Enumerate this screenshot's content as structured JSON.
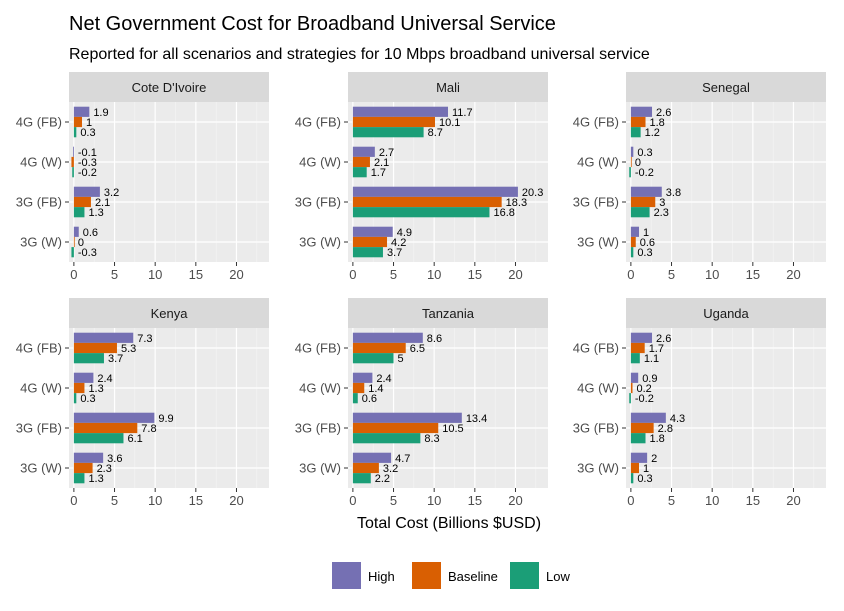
{
  "chart_data": {
    "type": "bar",
    "orientation": "horizontal",
    "facet": "country",
    "title": "Net Government Cost for Broadband Universal Service",
    "subtitle": "Reported for all scenarios and strategies for 10 Mbps broadband universal service",
    "xlabel": "Total Cost (Billions $USD)",
    "ylabel": "",
    "xlim": [
      -0.6,
      24
    ],
    "x_ticks": [
      0,
      5,
      10,
      15,
      20
    ],
    "grid": true,
    "legend_position": "bottom",
    "categories": [
      "4G (FB)",
      "4G (W)",
      "3G (FB)",
      "3G (W)"
    ],
    "series_names": [
      "High",
      "Baseline",
      "Low"
    ],
    "colors": {
      "High": "#7570b3",
      "Baseline": "#d95f02",
      "Low": "#1b9e77"
    },
    "panels": [
      {
        "country": "Cote D'Ivoire",
        "series": [
          {
            "name": "High",
            "values": [
              1.9,
              -0.1,
              3.2,
              0.6
            ]
          },
          {
            "name": "Baseline",
            "values": [
              1,
              -0.3,
              2.1,
              0
            ]
          },
          {
            "name": "Low",
            "values": [
              0.3,
              -0.2,
              1.3,
              -0.3
            ]
          }
        ]
      },
      {
        "country": "Mali",
        "series": [
          {
            "name": "High",
            "values": [
              11.7,
              2.7,
              20.3,
              4.9
            ]
          },
          {
            "name": "Baseline",
            "values": [
              10.1,
              2.1,
              18.3,
              4.2
            ]
          },
          {
            "name": "Low",
            "values": [
              8.7,
              1.7,
              16.8,
              3.7
            ]
          }
        ]
      },
      {
        "country": "Senegal",
        "series": [
          {
            "name": "High",
            "values": [
              2.6,
              0.3,
              3.8,
              1
            ]
          },
          {
            "name": "Baseline",
            "values": [
              1.8,
              0,
              3,
              0.6
            ]
          },
          {
            "name": "Low",
            "values": [
              1.2,
              -0.2,
              2.3,
              0.3
            ]
          }
        ]
      },
      {
        "country": "Kenya",
        "series": [
          {
            "name": "High",
            "values": [
              7.3,
              2.4,
              9.9,
              3.6
            ]
          },
          {
            "name": "Baseline",
            "values": [
              5.3,
              1.3,
              7.8,
              2.3
            ]
          },
          {
            "name": "Low",
            "values": [
              3.7,
              0.3,
              6.1,
              1.3
            ]
          }
        ]
      },
      {
        "country": "Tanzania",
        "series": [
          {
            "name": "High",
            "values": [
              8.6,
              2.4,
              13.4,
              4.7
            ]
          },
          {
            "name": "Baseline",
            "values": [
              6.5,
              1.4,
              10.5,
              3.2
            ]
          },
          {
            "name": "Low",
            "values": [
              5,
              0.6,
              8.3,
              2.2
            ]
          }
        ]
      },
      {
        "country": "Uganda",
        "series": [
          {
            "name": "High",
            "values": [
              2.6,
              0.9,
              4.3,
              2
            ]
          },
          {
            "name": "Baseline",
            "values": [
              1.7,
              0.2,
              2.8,
              1
            ]
          },
          {
            "name": "Low",
            "values": [
              1.1,
              -0.2,
              1.8,
              0.3
            ]
          }
        ]
      }
    ]
  }
}
